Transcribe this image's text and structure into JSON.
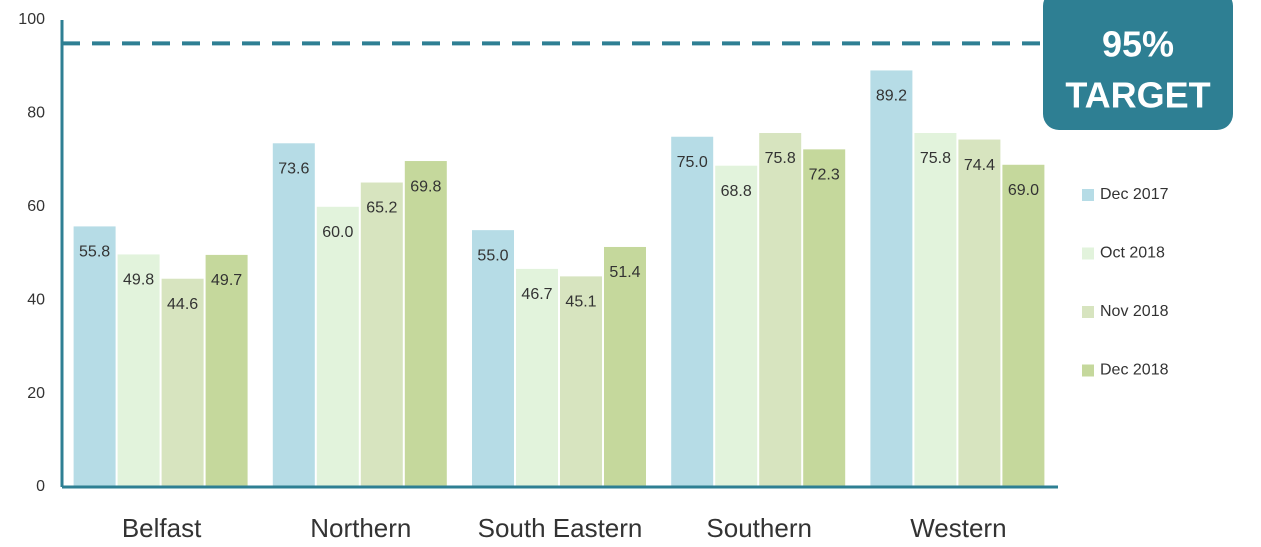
{
  "chart_data": {
    "type": "bar",
    "categories": [
      "Belfast",
      "Northern",
      "South Eastern",
      "Southern",
      "Western"
    ],
    "series": [
      {
        "name": "Dec 2017",
        "color": "#b6dce6",
        "values": [
          55.8,
          73.6,
          55.0,
          75.0,
          89.2
        ],
        "value_labels": [
          "55.8",
          "73.6",
          "55.0",
          "75.0",
          "89.2"
        ]
      },
      {
        "name": "Oct 2018",
        "color": "#e2f3dc",
        "values": [
          49.8,
          60.0,
          46.7,
          68.8,
          75.8
        ],
        "value_labels": [
          "49.8",
          "60.0",
          "46.7",
          "68.8",
          "75.8"
        ]
      },
      {
        "name": "Nov 2018",
        "color": "#d7e4bf",
        "values": [
          44.6,
          65.2,
          45.1,
          75.8,
          74.4
        ],
        "value_labels": [
          "44.6",
          "65.2",
          "45.1",
          "75.8",
          "74.4"
        ]
      },
      {
        "name": "Dec 2018",
        "color": "#c5d89c",
        "values": [
          49.7,
          69.8,
          51.4,
          72.3,
          69.0
        ],
        "value_labels": [
          "49.7",
          "69.8",
          "51.4",
          "72.3",
          "69.0"
        ]
      }
    ],
    "ylim": [
      0,
      100
    ],
    "yticks": [
      0,
      20,
      40,
      60,
      80,
      100
    ],
    "grid": false,
    "legend": "right",
    "target": {
      "value": 95,
      "label": "95%",
      "text": "TARGET",
      "color": "#2e7f93"
    }
  }
}
